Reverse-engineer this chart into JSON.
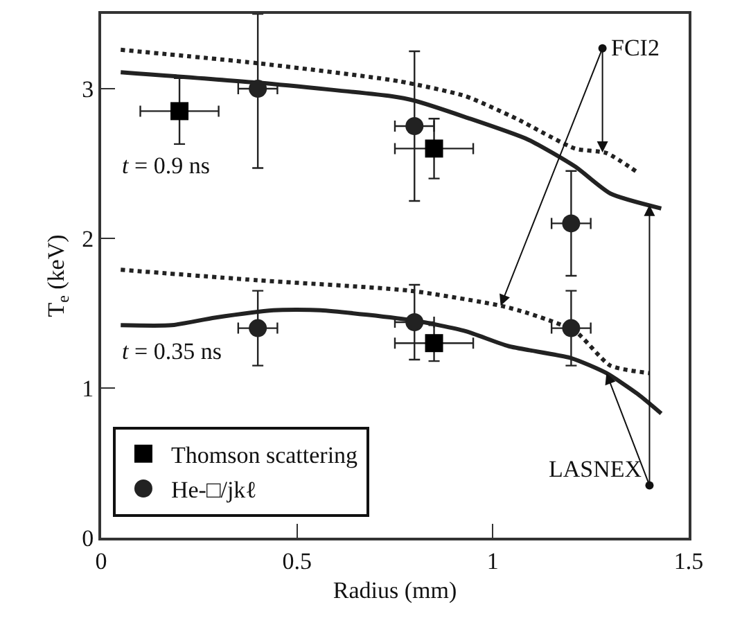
{
  "chart_data": {
    "type": "line",
    "xlabel": "Radius (mm)",
    "ylabel": "T$_{e}$ (keV)",
    "xlim": [
      0,
      1.5
    ],
    "xticks": [
      0,
      0.5,
      1,
      1.5
    ],
    "ylim": [
      0,
      3.5
    ],
    "yticks": [
      0,
      1,
      2,
      3
    ],
    "legend": "bottom left",
    "series": [
      {
        "line_style": "dashed",
        "color": "#222222",
        "x": [
          0.05,
          0.4,
          0.76,
          0.93,
          1.06,
          1.21,
          1.29,
          1.37
        ],
        "values": [
          3.26,
          3.17,
          3.05,
          2.95,
          2.8,
          2.6,
          2.57,
          2.44
        ]
      },
      {
        "line_style": "solid",
        "color": "#222222",
        "x": [
          0.05,
          0.4,
          0.74,
          0.8,
          0.93,
          1.09,
          1.21,
          1.3,
          1.43
        ],
        "values": [
          3.11,
          3.04,
          2.95,
          2.92,
          2.81,
          2.66,
          2.48,
          2.3,
          2.2
        ]
      },
      {
        "line_style": "dashed",
        "color": "#222222",
        "x": [
          0.05,
          0.4,
          0.79,
          1.02,
          1.09,
          1.21,
          1.3,
          1.4
        ],
        "values": [
          1.79,
          1.72,
          1.65,
          1.55,
          1.5,
          1.38,
          1.15,
          1.1
        ]
      },
      {
        "line_style": "solid",
        "color": "#222222",
        "x": [
          0.05,
          0.18,
          0.29,
          0.44,
          0.56,
          0.8,
          0.93,
          1.04,
          1.2,
          1.29,
          1.37,
          1.43
        ],
        "values": [
          1.42,
          1.42,
          1.47,
          1.52,
          1.52,
          1.45,
          1.38,
          1.28,
          1.2,
          1.1,
          0.96,
          0.83
        ]
      },
      {
        "type": "scatter",
        "name": "Thomson scattering",
        "marker": "square",
        "color": "#000000",
        "x": [
          0.2,
          0.85,
          0.85
        ],
        "values": [
          2.85,
          2.6,
          1.3
        ],
        "errors": [
          0.22,
          0.2,
          0.12
        ],
        "xerrors": [
          0.1,
          0.1,
          0.1
        ]
      },
      {
        "type": "scatter",
        "name": "He-□/jkℓ",
        "marker": "circle",
        "color": "#222222",
        "x": [
          0.4,
          0.8,
          1.2,
          0.4,
          0.8,
          1.2
        ],
        "values": [
          3.0,
          2.75,
          2.1,
          1.4,
          1.44,
          1.4
        ],
        "errors": [
          [
            2.47,
            3.5
          ],
          0.5,
          0.35,
          0.25,
          0.25,
          0.25
        ],
        "xerrors": [
          0.05,
          0.05,
          0.05,
          0.05,
          0.05,
          0.05
        ]
      }
    ],
    "annotations": [
      {
        "text": "FCI2",
        "x": 1.28,
        "y": 3.27
      },
      {
        "text": "LASNEX",
        "x": 1.4,
        "y": 0.35
      },
      "t = 0.9 ns",
      "t = 0.35 ns"
    ]
  }
}
